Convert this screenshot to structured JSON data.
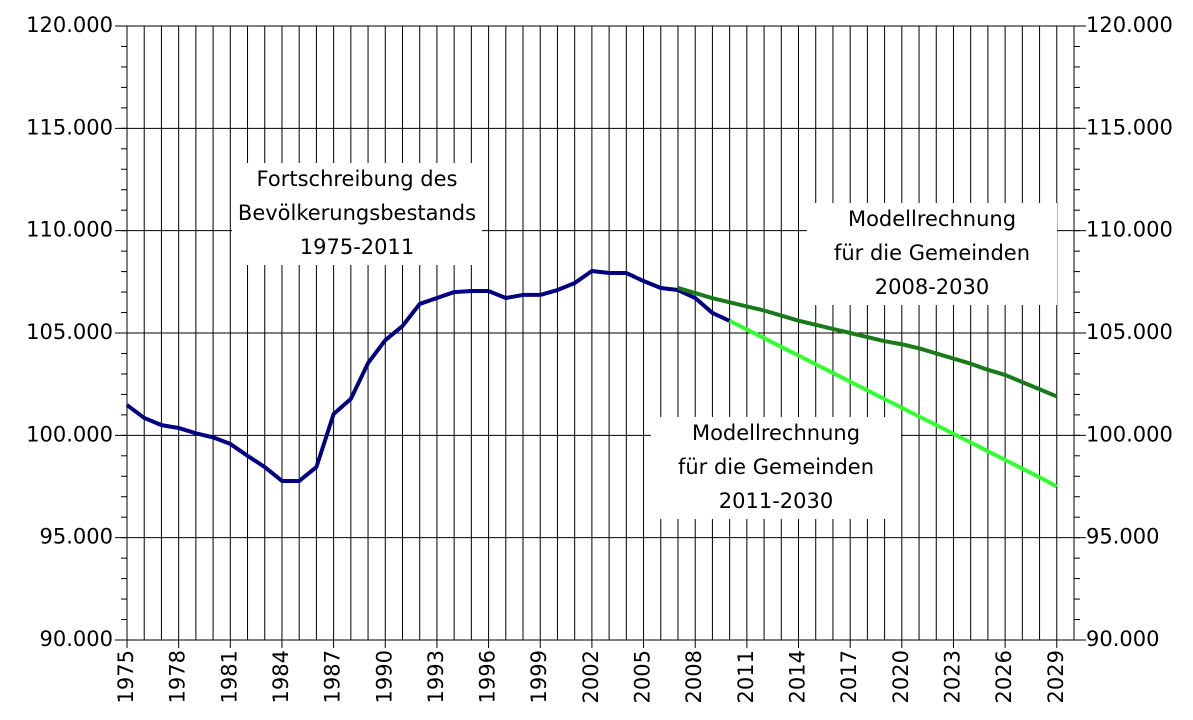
{
  "chart_data": {
    "type": "line",
    "xlim": [
      1975,
      2030
    ],
    "xticks": [
      1975,
      1978,
      1981,
      1984,
      1987,
      1990,
      1993,
      1996,
      1999,
      2002,
      2005,
      2008,
      2011,
      2014,
      2017,
      2020,
      2023,
      2026,
      2029
    ],
    "xgrid_step": 1,
    "ylim": [
      90000,
      120000
    ],
    "yticks": [
      {
        "value": 90000,
        "label": "90.000"
      },
      {
        "value": 95000,
        "label": "95.000"
      },
      {
        "value": 100000,
        "label": "100.000"
      },
      {
        "value": 105000,
        "label": "105.000"
      },
      {
        "value": 110000,
        "label": "110.000"
      },
      {
        "value": 115000,
        "label": "115.000"
      },
      {
        "value": 120000,
        "label": "120.000"
      }
    ],
    "y2lim": [
      90000,
      120000
    ],
    "y2ticks": [
      {
        "value": 90000,
        "label": "90.000"
      },
      {
        "value": 95000,
        "label": "95.000"
      },
      {
        "value": 100000,
        "label": "100.000"
      },
      {
        "value": 105000,
        "label": "105.000"
      },
      {
        "value": 110000,
        "label": "110.000"
      },
      {
        "value": 115000,
        "label": "115.000"
      },
      {
        "value": 120000,
        "label": "120.000"
      }
    ],
    "yminor_step": 1000,
    "grid": true,
    "series": [
      {
        "color": "#000080",
        "x": [
          1975,
          1976,
          1977,
          1978,
          1979,
          1980,
          1981,
          1982,
          1983,
          1984,
          1985,
          1986,
          1987,
          1988,
          1989,
          1990,
          1991,
          1992,
          1993,
          1994,
          1995,
          1996,
          1997,
          1998,
          1999,
          2000,
          2001,
          2002,
          2003,
          2004,
          2005,
          2006,
          2007,
          2008,
          2009,
          2010
        ],
        "values": [
          101480,
          100850,
          100500,
          100360,
          100100,
          99900,
          99580,
          99000,
          98450,
          97770,
          97770,
          98450,
          101040,
          101780,
          103530,
          104650,
          105340,
          106420,
          106710,
          107000,
          107050,
          107050,
          106710,
          106860,
          106860,
          107100,
          107440,
          108030,
          107930,
          107930,
          107540,
          107200,
          107100,
          106710,
          105980,
          105590
        ]
      },
      {
        "color": "#1a7a1a",
        "x": [
          2007,
          2008,
          2009,
          2010,
          2011,
          2012,
          2013,
          2014,
          2015,
          2016,
          2017,
          2018,
          2019,
          2020,
          2021,
          2022,
          2023,
          2024,
          2025,
          2026,
          2027,
          2028,
          2029
        ],
        "values": [
          107200,
          106950,
          106700,
          106500,
          106300,
          106100,
          105850,
          105600,
          105400,
          105200,
          105000,
          104800,
          104600,
          104450,
          104250,
          104000,
          103750,
          103500,
          103200,
          102950,
          102600,
          102250,
          101900
        ]
      },
      {
        "color": "#33ff33",
        "x": [
          2010,
          2011,
          2012,
          2013,
          2014,
          2015,
          2016,
          2017,
          2018,
          2019,
          2020,
          2021,
          2022,
          2023,
          2024,
          2025,
          2026,
          2027,
          2028,
          2029
        ],
        "values": [
          105600,
          105170,
          104750,
          104320,
          103900,
          103470,
          103050,
          102620,
          102200,
          101770,
          101350,
          100920,
          100500,
          100070,
          99650,
          99220,
          98800,
          98370,
          97950,
          97500
        ]
      }
    ],
    "annotations": [
      [
        "Fortschreibung des",
        "Bevölkerungsbestands",
        "1975-2011"
      ],
      [
        "Modellrechnung",
        "für die Gemeinden",
        "2008-2030"
      ],
      [
        "Modellrechnung",
        "für die Gemeinden",
        "2011-2030"
      ]
    ]
  }
}
